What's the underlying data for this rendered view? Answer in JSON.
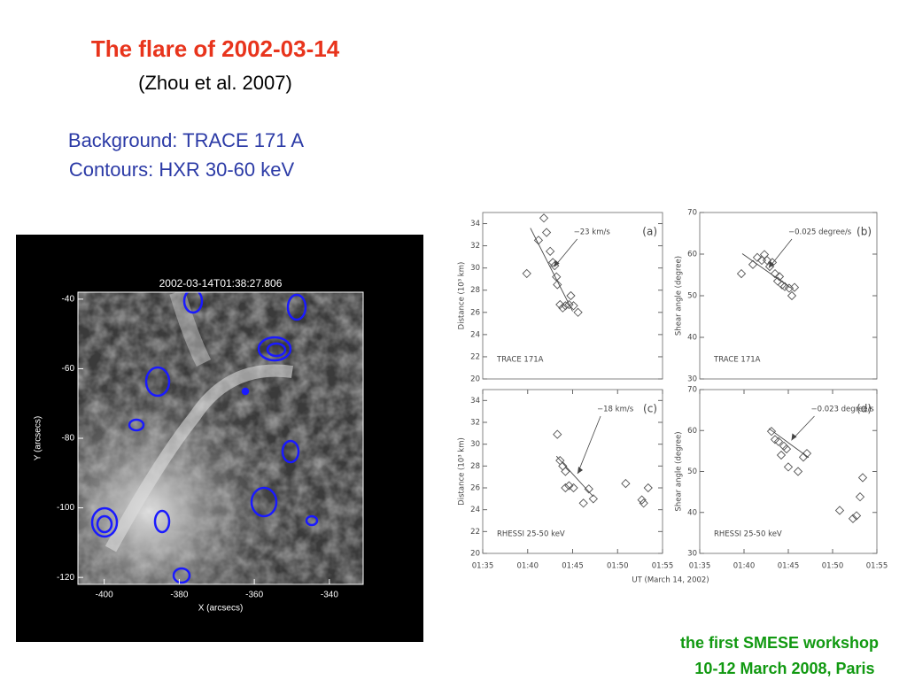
{
  "title": "The flare of 2002-03-14",
  "subtitle": "(Zhou et al. 2007)",
  "background_note": "Background: TRACE 171 A",
  "contours_note": "Contours: HXR 30-60 keV",
  "shared_xlabel": "UT (March 14, 2002)",
  "footer": [
    "the first SMESE workshop",
    "10-12 March 2008, Paris"
  ],
  "chart_data": [
    {
      "type": "image",
      "title": "2002-03-14T01:38:27.806",
      "xlabel": "X (arcsecs)",
      "ylabel": "Y (arcsecs)",
      "xlim": [
        -407,
        -331
      ],
      "ylim": [
        -122,
        -38
      ],
      "xticks": [
        -400,
        -380,
        -360,
        -340
      ],
      "yticks": [
        -40,
        -60,
        -80,
        -100,
        -120
      ]
    },
    {
      "type": "scatter",
      "panel_label": "(a)",
      "note": "TRACE 171A",
      "rate": "−23 km/s",
      "ylabel": "Distance (10³ km)",
      "xlim": [
        95,
        115
      ],
      "ylim": [
        20,
        35
      ],
      "yticks": [
        20,
        22,
        24,
        26,
        28,
        30,
        32,
        34
      ],
      "color": "#555555",
      "x": [
        99.9,
        101.2,
        101.8,
        102.1,
        102.5,
        102.8,
        103.0,
        103.2,
        103.3,
        103.6,
        103.9,
        104.2,
        104.6,
        104.8,
        105.1,
        105.6
      ],
      "y": [
        29.5,
        32.5,
        34.5,
        33.2,
        31.5,
        30.5,
        30.2,
        29.2,
        28.5,
        26.7,
        26.4,
        26.6,
        26.7,
        27.5,
        26.6,
        26.0
      ],
      "fit": {
        "x": [
          100.3,
          105.0
        ],
        "y": [
          33.6,
          26.1
        ]
      }
    },
    {
      "type": "scatter",
      "panel_label": "(b)",
      "note": "TRACE 171A",
      "rate": "−0.025 degree/s",
      "ylabel": "Shear angle (degree)",
      "xlim": [
        95,
        115
      ],
      "ylim": [
        30,
        70
      ],
      "yticks": [
        30,
        40,
        50,
        60,
        70
      ],
      "color": "#555555",
      "x": [
        99.7,
        101.0,
        101.5,
        102.0,
        102.3,
        102.6,
        102.9,
        103.2,
        103.5,
        103.8,
        104.0,
        104.3,
        104.6,
        105.1,
        105.4,
        105.7
      ],
      "y": [
        55.3,
        57.5,
        59.2,
        58.5,
        59.9,
        58.5,
        57.0,
        58.0,
        55.3,
        53.5,
        54.6,
        52.6,
        52.2,
        51.8,
        50.0,
        52.0
      ],
      "fit": {
        "x": [
          99.8,
          105.2
        ],
        "y": [
          60.1,
          52.0
        ]
      }
    },
    {
      "type": "scatter",
      "panel_label": "(c)",
      "note": "RHESSI 25-50 keV",
      "rate": "−18 km/s",
      "ylabel": "Distance (10³ km)",
      "xlim": [
        95,
        115
      ],
      "ylim": [
        20,
        35
      ],
      "yticks": [
        20,
        22,
        24,
        26,
        28,
        30,
        32,
        34
      ],
      "color": "#555555",
      "xticks": [
        {
          "value": 95,
          "label": "01:35"
        },
        {
          "value": 100,
          "label": "01:40"
        },
        {
          "value": 105,
          "label": "01:45"
        },
        {
          "value": 110,
          "label": "01:50"
        },
        {
          "value": 115,
          "label": "01:55"
        }
      ],
      "x": [
        103.3,
        103.6,
        103.9,
        104.2,
        104.2,
        104.6,
        105.1,
        106.2,
        106.8,
        107.3,
        110.9,
        112.7,
        112.9,
        113.4
      ],
      "y": [
        30.9,
        28.5,
        28.0,
        27.5,
        26.0,
        26.2,
        26.0,
        24.6,
        25.9,
        25.0,
        26.4,
        24.9,
        24.6,
        26.0
      ],
      "fit": {
        "x": [
          103.2,
          107.3
        ],
        "y": [
          28.9,
          25.2
        ]
      }
    },
    {
      "type": "scatter",
      "panel_label": "(d)",
      "note": "RHESSI 25-50 keV",
      "rate": "−0.023 degree/s",
      "ylabel": "Shear angle (degree)",
      "xlim": [
        95,
        115
      ],
      "ylim": [
        30,
        70
      ],
      "yticks": [
        30,
        40,
        50,
        60,
        70
      ],
      "color": "#555555",
      "xticks": [
        {
          "value": 95,
          "label": "01:35"
        },
        {
          "value": 100,
          "label": "01:40"
        },
        {
          "value": 105,
          "label": "01:45"
        },
        {
          "value": 110,
          "label": "01:50"
        },
        {
          "value": 115,
          "label": "01:55"
        }
      ],
      "x": [
        103.1,
        103.5,
        103.9,
        104.2,
        104.5,
        104.8,
        105.0,
        106.1,
        106.7,
        107.1,
        110.8,
        112.3,
        112.7,
        113.1,
        113.4
      ],
      "y": [
        59.8,
        57.8,
        57.3,
        54.0,
        56.2,
        55.5,
        51.1,
        50.0,
        53.5,
        54.4,
        40.5,
        38.5,
        39.2,
        43.8,
        48.5
      ],
      "fit": {
        "x": [
          102.8,
          107.3
        ],
        "y": [
          60.5,
          53.4
        ]
      }
    }
  ]
}
